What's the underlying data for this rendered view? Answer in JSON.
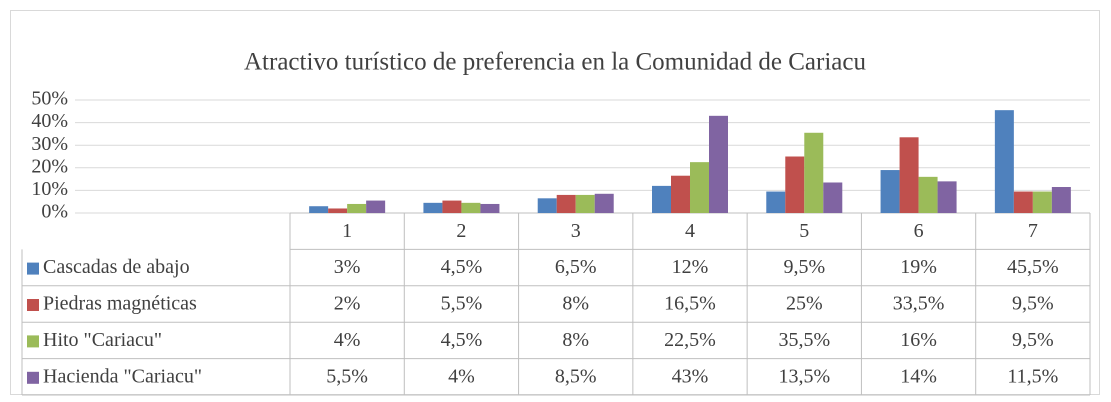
{
  "chart_data": {
    "type": "bar",
    "title": "Atractivo turístico de preferencia en la Comunidad de Cariacu",
    "categories": [
      "1",
      "2",
      "3",
      "4",
      "5",
      "6",
      "7"
    ],
    "series": [
      {
        "name": "Cascadas de abajo",
        "color": "#4f81bd",
        "values": [
          3,
          4.5,
          6.5,
          12,
          9.5,
          19,
          45.5
        ],
        "value_labels": [
          "3%",
          "4,5%",
          "6,5%",
          "12%",
          "9,5%",
          "19%",
          "45,5%"
        ]
      },
      {
        "name": "Piedras magnéticas",
        "color": "#c0504d",
        "values": [
          2,
          5.5,
          8,
          16.5,
          25,
          33.5,
          9.5
        ],
        "value_labels": [
          "2%",
          "5,5%",
          "8%",
          "16,5%",
          "25%",
          "33,5%",
          "9,5%"
        ]
      },
      {
        "name": "Hito \"Cariacu\"",
        "color": "#9bbb59",
        "values": [
          4,
          4.5,
          8,
          22.5,
          35.5,
          16,
          9.5
        ],
        "value_labels": [
          "4%",
          "4,5%",
          "8%",
          "22,5%",
          "35,5%",
          "16%",
          "9,5%"
        ]
      },
      {
        "name": "Hacienda \"Cariacu\"",
        "color": "#8064a2",
        "values": [
          5.5,
          4,
          8.5,
          43,
          13.5,
          14,
          11.5
        ],
        "value_labels": [
          "5,5%",
          "4%",
          "8,5%",
          "43%",
          "13,5%",
          "14%",
          "11,5%"
        ]
      }
    ],
    "ylim": [
      0,
      50
    ],
    "yticks": [
      {
        "value": 0,
        "label": "0%"
      },
      {
        "value": 10,
        "label": "10%"
      },
      {
        "value": 20,
        "label": "20%"
      },
      {
        "value": 30,
        "label": "30%"
      },
      {
        "value": 40,
        "label": "40%"
      },
      {
        "value": 50,
        "label": "50%"
      }
    ],
    "grid": true
  }
}
